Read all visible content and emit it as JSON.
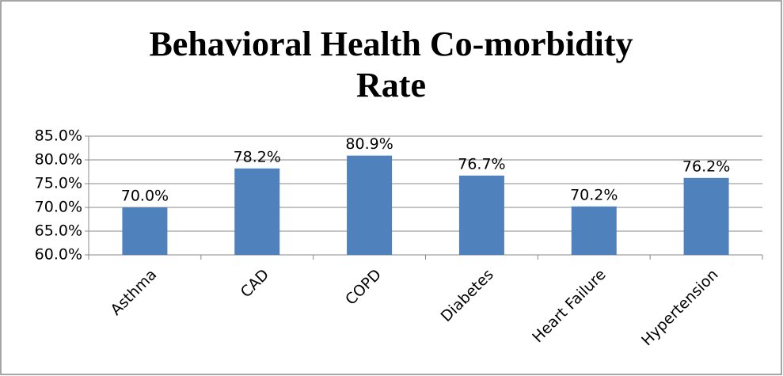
{
  "chart_data": {
    "type": "bar",
    "title": "Behavioral Health Co-morbidity Rate",
    "categories": [
      "Asthma",
      "CAD",
      "COPD",
      "Diabetes",
      "Heart Failure",
      "Hypertension"
    ],
    "values": [
      70.0,
      78.2,
      80.9,
      76.7,
      70.2,
      76.2
    ],
    "value_labels": [
      "70.0%",
      "78.2%",
      "80.9%",
      "76.7%",
      "70.2%",
      "76.2%"
    ],
    "color": "#4f81bd",
    "ylim": [
      60,
      85
    ],
    "yticks": [
      {
        "value": 60,
        "label": "60.0%"
      },
      {
        "value": 65,
        "label": "65.0%"
      },
      {
        "value": 70,
        "label": "70.0%"
      },
      {
        "value": 75,
        "label": "75.0%"
      },
      {
        "value": 80,
        "label": "80.0%"
      },
      {
        "value": 85,
        "label": "85.0%"
      }
    ],
    "grid": true
  }
}
